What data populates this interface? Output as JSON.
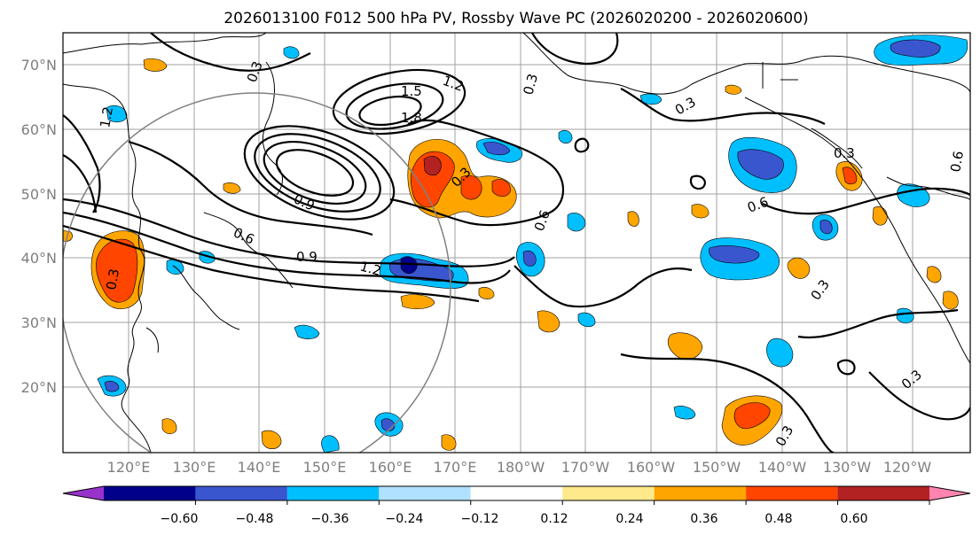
{
  "title": "2026013100 F012 500 hPa PV, Rossby Wave PC (2026020200 - 2026020600)",
  "map": {
    "lat_labels": [
      "70°N",
      "60°N",
      "50°N",
      "40°N",
      "30°N",
      "20°N"
    ],
    "lon_labels": [
      "120°E",
      "130°E",
      "140°E",
      "150°E",
      "160°E",
      "170°E",
      "180°W",
      "170°W",
      "160°W",
      "150°W",
      "140°W",
      "130°W",
      "120°W"
    ],
    "contour_labels": [
      "0.3",
      "1.5",
      "1.2",
      "1.8",
      "0.9",
      "0.6",
      "0.9",
      "1.2",
      "0.6",
      "0.3",
      "0.6",
      "0.3",
      "0.3",
      "0.3",
      "0.3",
      "0.6",
      "0.3",
      "1.2",
      "0.3",
      "0.3"
    ]
  },
  "colorbar": {
    "ticks": [
      "−0.60",
      "−0.48",
      "−0.36",
      "−0.24",
      "−0.12",
      "0.12",
      "0.24",
      "0.36",
      "0.48",
      "0.60"
    ],
    "colors": [
      "#9932cc",
      "#00008b",
      "#3a56cf",
      "#00bfff",
      "#b0e2ff",
      "#ffffff",
      "#ffe98a",
      "#ffa500",
      "#ff4500",
      "#b22222",
      "#ff85b0"
    ]
  }
}
